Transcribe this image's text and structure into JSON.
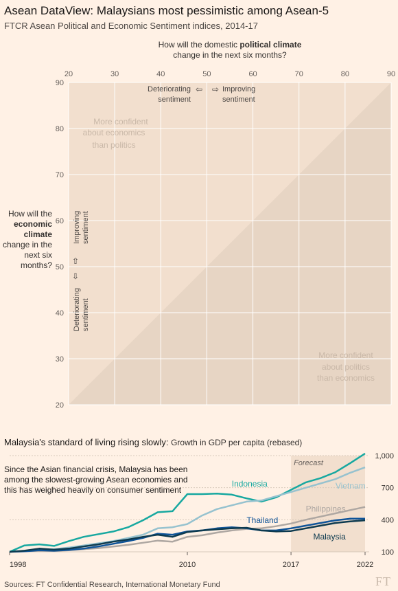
{
  "header": {
    "title": "Asean DataView: Malaysians most pessimistic among Asean-5",
    "subtitle": "FTCR Asean Political and Economic Sentiment indices, 2014-17"
  },
  "chart_data": [
    {
      "type": "scatter",
      "x_axis_question_prefix": "How will the domestic",
      "x_axis_question_bold": "political climate",
      "x_axis_question_suffix": "change in the next six months?",
      "y_axis_question_prefix": "How will the",
      "y_axis_question_bold": "economic climate",
      "y_axis_question_suffix": "change in the next six months?",
      "xlim": [
        20,
        90
      ],
      "ylim": [
        20,
        90
      ],
      "x_ticks": [
        20,
        30,
        40,
        50,
        60,
        70,
        80,
        90
      ],
      "y_ticks": [
        20,
        30,
        40,
        50,
        60,
        70,
        80,
        90
      ],
      "grid": true,
      "annotations": {
        "x_deteriorating": "Deteriorating sentiment",
        "x_improving": "Improving sentiment",
        "y_improving": "Improving sentiment",
        "y_deteriorating": "Deteriorating sentiment",
        "upper_region": "More confident about economics than politics",
        "lower_region": "More confident about politics than economics"
      },
      "colors": {
        "upper_region": "#f2dfce",
        "lower_region": "#e7d5c4",
        "grid": "#ffffff",
        "region_text": "#c9b8a8"
      }
    },
    {
      "type": "line",
      "title": "Malaysia's standard of living rising slowly:",
      "subtitle": "Growth in GDP per capita (rebased)",
      "annotation": "Since the Asian financial crisis, Malaysia has been among the slowest-growing Asean economies and this has weighed heavily on consumer sentiment",
      "x_tick_labels": [
        "1998",
        "2010",
        "2017",
        "2022"
      ],
      "x_ticks": [
        1998,
        2010,
        2017,
        2022
      ],
      "y_ticks": [
        100,
        400,
        700,
        1000
      ],
      "y_tick_labels": [
        "100",
        "400",
        "700",
        "1,000"
      ],
      "xlim": [
        1998,
        2022
      ],
      "ylim": [
        100,
        1000
      ],
      "forecast_label": "Forecast",
      "forecast_range": [
        2017,
        2022
      ],
      "series": [
        {
          "name": "Indonesia",
          "color": "#17a8a0",
          "x": [
            1998,
            1999,
            2000,
            2001,
            2002,
            2003,
            2004,
            2005,
            2006,
            2007,
            2008,
            2009,
            2010,
            2011,
            2012,
            2013,
            2014,
            2015,
            2016,
            2017,
            2018,
            2019,
            2020,
            2021,
            2022
          ],
          "values": [
            100,
            160,
            170,
            155,
            200,
            240,
            265,
            290,
            330,
            395,
            470,
            480,
            640,
            640,
            645,
            635,
            600,
            570,
            610,
            680,
            750,
            790,
            845,
            930,
            1020
          ]
        },
        {
          "name": "Vietnam",
          "color": "#96c2cf",
          "x": [
            1998,
            1999,
            2000,
            2001,
            2002,
            2003,
            2004,
            2005,
            2006,
            2007,
            2008,
            2009,
            2010,
            2011,
            2012,
            2013,
            2014,
            2015,
            2016,
            2017,
            2018,
            2019,
            2020,
            2021,
            2022
          ],
          "values": [
            100,
            110,
            118,
            125,
            140,
            160,
            180,
            200,
            230,
            260,
            320,
            330,
            360,
            440,
            500,
            535,
            570,
            580,
            620,
            660,
            700,
            740,
            780,
            840,
            890
          ]
        },
        {
          "name": "Philippines",
          "color": "#aea7a2",
          "x": [
            1998,
            1999,
            2000,
            2001,
            2002,
            2003,
            2004,
            2005,
            2006,
            2007,
            2008,
            2009,
            2010,
            2011,
            2012,
            2013,
            2014,
            2015,
            2016,
            2017,
            2018,
            2019,
            2020,
            2021,
            2022
          ],
          "values": [
            100,
            105,
            110,
            108,
            115,
            125,
            135,
            150,
            165,
            185,
            205,
            195,
            240,
            255,
            280,
            300,
            315,
            320,
            340,
            365,
            400,
            430,
            460,
            490,
            520
          ]
        },
        {
          "name": "Thailand",
          "color": "#0f5499",
          "x": [
            1998,
            1999,
            2000,
            2001,
            2002,
            2003,
            2004,
            2005,
            2006,
            2007,
            2008,
            2009,
            2010,
            2011,
            2012,
            2013,
            2014,
            2015,
            2016,
            2017,
            2018,
            2019,
            2020,
            2021,
            2022
          ],
          "values": [
            100,
            105,
            115,
            110,
            118,
            130,
            150,
            175,
            200,
            230,
            270,
            260,
            290,
            300,
            320,
            330,
            320,
            300,
            300,
            320,
            345,
            370,
            395,
            410,
            410
          ]
        },
        {
          "name": "Malaysia",
          "color": "#0d3a4f",
          "x": [
            1998,
            1999,
            2000,
            2001,
            2002,
            2003,
            2004,
            2005,
            2006,
            2007,
            2008,
            2009,
            2010,
            2011,
            2012,
            2013,
            2014,
            2015,
            2016,
            2017,
            2018,
            2019,
            2020,
            2021,
            2022
          ],
          "values": [
            100,
            110,
            130,
            120,
            130,
            150,
            170,
            195,
            215,
            240,
            260,
            240,
            285,
            300,
            310,
            320,
            325,
            300,
            290,
            295,
            320,
            345,
            370,
            385,
            395
          ]
        }
      ]
    }
  ],
  "source": "Sources: FT Confidential Research, International Monetary Fund",
  "logo": "FT"
}
